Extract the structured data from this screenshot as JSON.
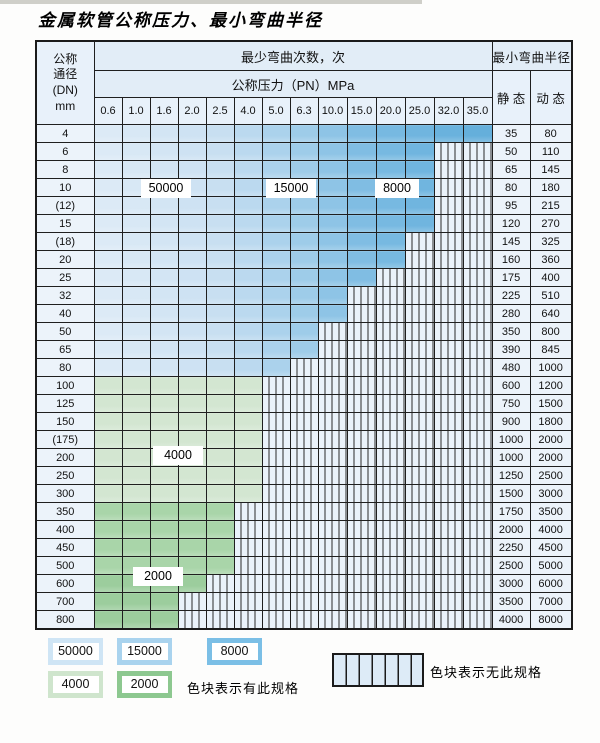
{
  "page": {
    "title": "金属软管公称压力、最小弯曲半径"
  },
  "table": {
    "dn_header_lines": [
      "公称",
      "通径",
      "(DN)",
      "mm"
    ],
    "cycles_header": "最少弯曲次数，次",
    "pressure_header": "公称压力（PN）MPa",
    "pressure_columns": [
      "0.6",
      "1.0",
      "1.6",
      "2.0",
      "2.5",
      "4.0",
      "5.0",
      "6.3",
      "10.0",
      "15.0",
      "20.0",
      "25.0",
      "32.0",
      "35.0"
    ],
    "radius_header": "最小弯曲半径",
    "static_label": "静 态",
    "dynamic_label": "动 态",
    "rows": [
      {
        "dn": "4",
        "zone": "blue",
        "colored_until": 13,
        "static": "35",
        "dynamic": "80"
      },
      {
        "dn": "6",
        "zone": "blue",
        "colored_until": 11,
        "static": "50",
        "dynamic": "110"
      },
      {
        "dn": "8",
        "zone": "blue",
        "colored_until": 11,
        "static": "65",
        "dynamic": "145"
      },
      {
        "dn": "10",
        "zone": "blue",
        "colored_until": 11,
        "static": "80",
        "dynamic": "180"
      },
      {
        "dn": "(12)",
        "zone": "blue",
        "colored_until": 11,
        "static": "95",
        "dynamic": "215"
      },
      {
        "dn": "15",
        "zone": "blue",
        "colored_until": 11,
        "static": "120",
        "dynamic": "270"
      },
      {
        "dn": "(18)",
        "zone": "blue",
        "colored_until": 10,
        "static": "145",
        "dynamic": "325"
      },
      {
        "dn": "20",
        "zone": "blue",
        "colored_until": 10,
        "static": "160",
        "dynamic": "360"
      },
      {
        "dn": "25",
        "zone": "blue",
        "colored_until": 9,
        "static": "175",
        "dynamic": "400"
      },
      {
        "dn": "32",
        "zone": "blue",
        "colored_until": 8,
        "static": "225",
        "dynamic": "510"
      },
      {
        "dn": "40",
        "zone": "blue",
        "colored_until": 8,
        "static": "280",
        "dynamic": "640"
      },
      {
        "dn": "50",
        "zone": "blue",
        "colored_until": 7,
        "static": "350",
        "dynamic": "800"
      },
      {
        "dn": "65",
        "zone": "blue",
        "colored_until": 7,
        "static": "390",
        "dynamic": "845"
      },
      {
        "dn": "80",
        "zone": "blue",
        "colored_until": 6,
        "static": "480",
        "dynamic": "1000"
      },
      {
        "dn": "100",
        "zone": "green_light",
        "colored_until": 5,
        "static": "600",
        "dynamic": "1200"
      },
      {
        "dn": "125",
        "zone": "green_light",
        "colored_until": 5,
        "static": "750",
        "dynamic": "1500"
      },
      {
        "dn": "150",
        "zone": "green_light",
        "colored_until": 5,
        "static": "900",
        "dynamic": "1800"
      },
      {
        "dn": "(175)",
        "zone": "green_light",
        "colored_until": 5,
        "static": "1000",
        "dynamic": "2000"
      },
      {
        "dn": "200",
        "zone": "green_light",
        "colored_until": 5,
        "static": "1000",
        "dynamic": "2000"
      },
      {
        "dn": "250",
        "zone": "green_light",
        "colored_until": 5,
        "static": "1250",
        "dynamic": "2500"
      },
      {
        "dn": "300",
        "zone": "green_light",
        "colored_until": 5,
        "static": "1500",
        "dynamic": "3000"
      },
      {
        "dn": "350",
        "zone": "green_mid",
        "colored_until": 4,
        "static": "1750",
        "dynamic": "3500"
      },
      {
        "dn": "400",
        "zone": "green_mid",
        "colored_until": 4,
        "static": "2000",
        "dynamic": "4000"
      },
      {
        "dn": "450",
        "zone": "green_mid",
        "colored_until": 4,
        "static": "2250",
        "dynamic": "4500"
      },
      {
        "dn": "500",
        "zone": "green_mid",
        "colored_until": 4,
        "static": "2500",
        "dynamic": "5000"
      },
      {
        "dn": "600",
        "zone": "green_dark",
        "colored_until": 3,
        "static": "3000",
        "dynamic": "6000"
      },
      {
        "dn": "700",
        "zone": "green_dark",
        "colored_until": 2,
        "static": "3500",
        "dynamic": "7000"
      },
      {
        "dn": "800",
        "zone": "green_dark",
        "colored_until": 2,
        "static": "4000",
        "dynamic": "8000"
      }
    ]
  },
  "colors": {
    "blue_scale": [
      "#dceaf6",
      "#d8e8f5",
      "#d3e5f4",
      "#cee2f3",
      "#c8dff1",
      "#bbd9ef",
      "#abd2ec",
      "#9ecce9",
      "#8ec4e6",
      "#80bde3",
      "#77b9e1",
      "#70b5df",
      "#6ab2dd",
      "#65afdb"
    ],
    "green_light": "#d3e6d1",
    "green_mid": "#a9d5a9",
    "green_dark": "#9ccd9d",
    "hatch_bg": "#eaf2fa",
    "hatch_line": "#2b2b2b",
    "header_bg": "#e2edf7",
    "subheader_bg": "#e8f1fa",
    "grid_line": "#1f1f1f"
  },
  "legend": {
    "available": [
      {
        "value": "50000",
        "color": "#cfe5f5"
      },
      {
        "value": "15000",
        "color": "#a9d3ee"
      },
      {
        "value": "8000",
        "color": "#7bbfe6"
      },
      {
        "value": "4000",
        "color": "#cfe5cd"
      },
      {
        "value": "2000",
        "color": "#8dc890"
      }
    ],
    "available_text": "色块表示有此规格",
    "none_text": "色块表示无此规格"
  }
}
